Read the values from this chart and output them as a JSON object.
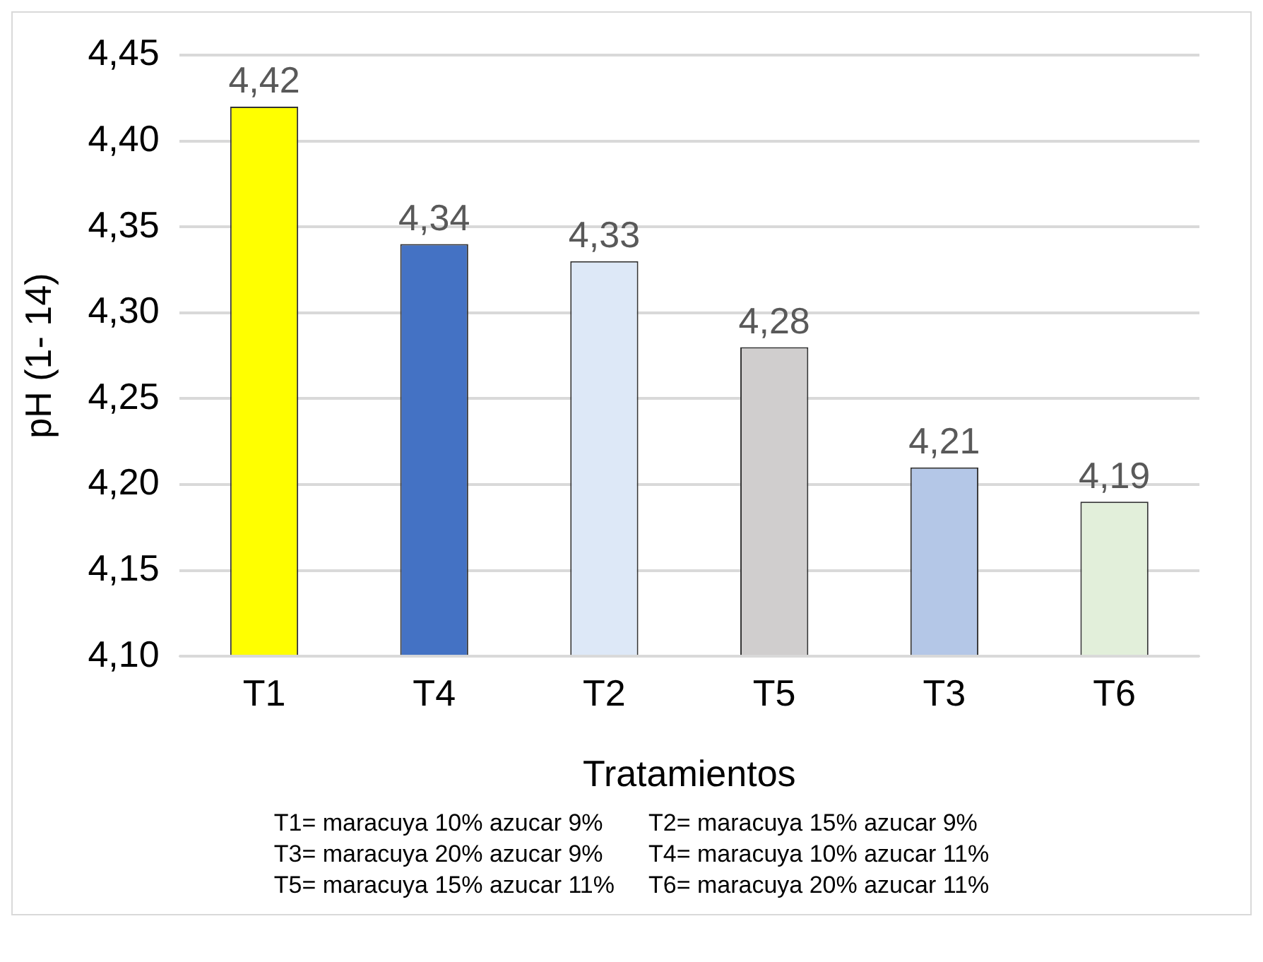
{
  "chart_data": {
    "type": "bar",
    "categories": [
      "T1",
      "T4",
      "T2",
      "T5",
      "T3",
      "T6"
    ],
    "values": [
      4.42,
      4.34,
      4.33,
      4.28,
      4.21,
      4.19
    ],
    "colors": [
      "#ffff00",
      "#4472c4",
      "#dde8f7",
      "#d0cece",
      "#b4c7e7",
      "#e2efda"
    ],
    "value_labels": [
      "4,42",
      "4,34",
      "4,33",
      "4,28",
      "4,21",
      "4,19"
    ],
    "xlabel": "Tratamientos",
    "ylabel": "pH (1- 14)",
    "ylim": [
      4.1,
      4.45
    ],
    "yticks": [
      {
        "value": 4.1,
        "label": "4,10"
      },
      {
        "value": 4.15,
        "label": "4,15"
      },
      {
        "value": 4.2,
        "label": "4,20"
      },
      {
        "value": 4.25,
        "label": "4,25"
      },
      {
        "value": 4.3,
        "label": "4,30"
      },
      {
        "value": 4.35,
        "label": "4,35"
      },
      {
        "value": 4.4,
        "label": "4,40"
      },
      {
        "value": 4.45,
        "label": "4,45"
      }
    ],
    "grid": "y",
    "legend": false,
    "annotations": [
      "T1= maracuya 10% azucar 9%",
      "T2= maracuya 15% azucar 9%",
      "T3= maracuya 20% azucar 9%",
      "T4= maracuya 10% azucar 11%",
      "T5= maracuya 15% azucar 11%",
      "T6= maracuya 20% azucar 11%"
    ]
  }
}
